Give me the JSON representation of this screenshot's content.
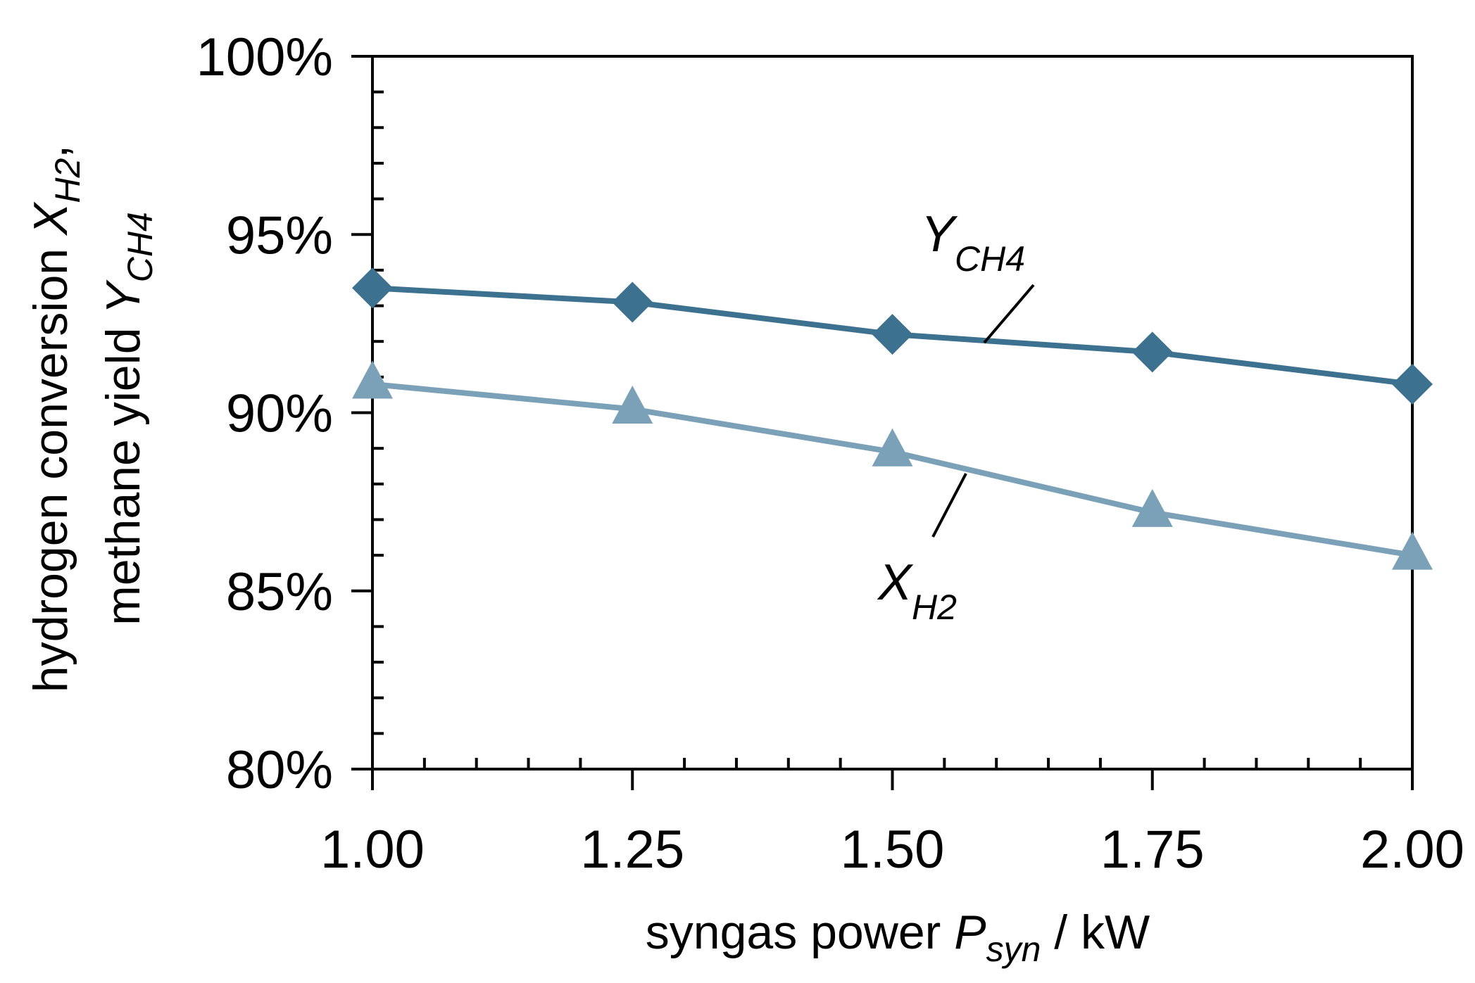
{
  "chart_data": {
    "type": "line",
    "x": [
      1.0,
      1.25,
      1.5,
      1.75,
      2.0
    ],
    "x_tick_labels": [
      "1.00",
      "1.25",
      "1.50",
      "1.75",
      "2.00"
    ],
    "y_tick_labels": [
      "80%",
      "85%",
      "90%",
      "95%",
      "100%"
    ],
    "xlim": [
      1.0,
      2.0
    ],
    "ylim": [
      80,
      100
    ],
    "y_major_ticks": [
      80,
      85,
      90,
      95,
      100
    ],
    "xlabel": {
      "prefix": "syngas power ",
      "var": "P",
      "sub": "syn",
      "suffix": " / kW"
    },
    "ylabel": {
      "line1": {
        "prefix": "hydrogen conversion ",
        "var": "X",
        "sub": "H2",
        "suffix": ","
      },
      "line2": {
        "prefix": "methane yield ",
        "var": "Y",
        "sub": "CH4"
      }
    },
    "grid": false,
    "series": [
      {
        "name": "Y_CH4",
        "label_main": "Y",
        "label_sub": "CH4",
        "marker": "diamond",
        "color": "#3d7190",
        "values": [
          93.5,
          93.1,
          92.2,
          91.7,
          90.8
        ]
      },
      {
        "name": "X_H2",
        "label_main": "X",
        "label_sub": "H2",
        "marker": "triangle",
        "color": "#7ba1b9",
        "values": [
          90.8,
          90.1,
          88.9,
          87.2,
          86.0
        ]
      }
    ]
  }
}
